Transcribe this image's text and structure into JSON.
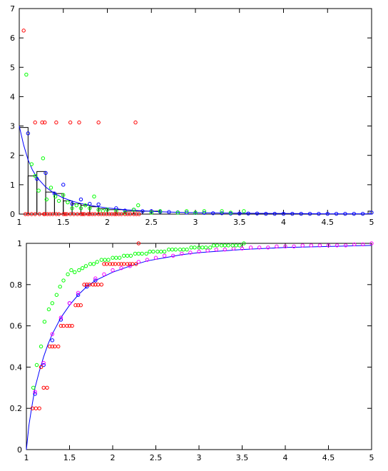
{
  "chart_data": [
    {
      "type": "histogram+scatter",
      "title": "",
      "xlabel": "",
      "ylabel": "",
      "xlim": [
        1,
        5
      ],
      "ylim": [
        0,
        7
      ],
      "xticks": [
        "1",
        "1.5",
        "2",
        "2.5",
        "3",
        "3.5",
        "4",
        "4.5",
        "5"
      ],
      "yticks": [
        "0",
        "1",
        "2",
        "3",
        "4",
        "5",
        "6",
        "7"
      ],
      "xtick_values": [
        1,
        1.5,
        2,
        2.5,
        3,
        3.5,
        4,
        4.5,
        5
      ],
      "ytick_values": [
        0,
        1,
        2,
        3,
        4,
        5,
        6,
        7
      ],
      "grid": false,
      "legend": "none",
      "histogram": {
        "bin_edges": [
          1.0,
          1.1,
          1.2,
          1.3,
          1.4,
          1.5,
          1.6,
          1.7,
          1.8,
          1.9,
          2.0,
          2.1,
          2.2,
          2.3,
          2.4,
          2.5,
          2.6,
          4.96,
          5.0
        ],
        "heights": [
          2.95,
          1.3,
          1.45,
          0.75,
          0.7,
          0.45,
          0.35,
          0.3,
          0.25,
          0.18,
          0.15,
          0.15,
          0.1,
          0.1,
          0.1,
          0.1,
          0.0,
          0.1
        ]
      },
      "series": [
        {
          "color": "#0000ff",
          "mode": "line",
          "x": [
            1.0,
            1.05,
            1.1,
            1.15,
            1.2,
            1.3,
            1.4,
            1.5,
            1.6,
            1.7,
            1.8,
            1.9,
            2.0,
            2.2,
            2.4,
            2.6,
            2.8,
            3.0,
            3.5,
            4.0,
            4.5,
            5.0
          ],
          "y": [
            3.0,
            2.35,
            1.85,
            1.5,
            1.25,
            0.92,
            0.7,
            0.55,
            0.44,
            0.36,
            0.3,
            0.25,
            0.21,
            0.15,
            0.11,
            0.08,
            0.06,
            0.05,
            0.03,
            0.02,
            0.01,
            0.01
          ]
        },
        {
          "color": "#0000ff",
          "mode": "markers",
          "x": [
            1.1,
            1.2,
            1.3,
            1.4,
            1.5,
            1.6,
            1.7,
            1.8,
            1.9,
            2.0,
            2.1,
            2.2,
            2.3,
            2.4,
            2.5,
            2.6,
            2.7,
            2.8,
            2.9,
            3.0,
            3.1,
            3.2,
            3.3,
            3.4,
            3.5,
            3.6,
            3.7,
            3.8,
            3.9,
            4.0,
            4.1,
            4.2,
            4.3,
            4.4,
            4.5,
            4.6,
            4.7,
            4.8,
            4.9,
            5.0
          ],
          "y": [
            2.75,
            1.2,
            1.4,
            0.7,
            1.0,
            0.35,
            0.5,
            0.35,
            0.33,
            0.15,
            0.2,
            0.12,
            0.15,
            0.1,
            0.1,
            0.08,
            0.07,
            0.06,
            0.05,
            0.04,
            0.04,
            0.03,
            0.03,
            0.02,
            0.02,
            0.02,
            0.02,
            0.01,
            0.01,
            0.01,
            0.01,
            0.01,
            0.01,
            0.01,
            0.01,
            0.01,
            0.01,
            0.01,
            0.01,
            0.05
          ]
        },
        {
          "color": "#00ff00",
          "mode": "markers",
          "x": [
            1.08,
            1.14,
            1.18,
            1.22,
            1.27,
            1.31,
            1.36,
            1.41,
            1.45,
            1.5,
            1.55,
            1.6,
            1.65,
            1.7,
            1.75,
            1.8,
            1.85,
            1.9,
            1.95,
            2.0,
            2.1,
            2.2,
            2.3,
            2.35,
            2.5,
            2.6,
            2.8,
            2.9,
            3.0,
            3.1,
            3.3,
            3.4,
            3.55
          ],
          "y": [
            4.75,
            1.7,
            1.3,
            0.8,
            1.9,
            0.5,
            0.9,
            0.6,
            0.45,
            0.65,
            0.4,
            0.2,
            0.3,
            0.2,
            0.3,
            0.2,
            0.6,
            0.15,
            0.1,
            0.15,
            0.1,
            0.05,
            0.15,
            0.3,
            0.05,
            0.1,
            0.05,
            0.1,
            0.05,
            0.1,
            0.1,
            0.05,
            0.1
          ]
        },
        {
          "color": "#ff0000",
          "mode": "markers",
          "x": [
            1.05,
            1.07,
            1.1,
            1.14,
            1.18,
            1.23,
            1.28,
            1.29,
            1.32,
            1.35,
            1.38,
            1.42,
            1.45,
            1.5,
            1.52,
            1.54,
            1.58,
            1.62,
            1.66,
            1.7,
            1.72,
            1.74,
            1.78,
            1.8,
            1.83,
            1.86,
            1.9,
            1.93,
            1.96,
            1.99,
            2.02,
            2.05,
            2.08,
            2.1,
            2.13,
            2.16,
            2.2,
            2.23,
            2.26,
            2.3,
            2.33,
            2.36,
            1.18,
            1.26,
            1.29,
            1.42,
            1.58,
            1.68,
            1.9,
            2.32
          ],
          "y": [
            6.25,
            0.0,
            0.0,
            0.0,
            0.0,
            0.0,
            0.0,
            0.0,
            0.0,
            0.0,
            0.0,
            0.0,
            0.0,
            0.0,
            0.0,
            0.0,
            0.0,
            0.0,
            0.0,
            0.0,
            0.0,
            0.0,
            0.0,
            0.0,
            0.0,
            0.0,
            0.0,
            0.0,
            0.0,
            0.0,
            0.0,
            0.0,
            0.0,
            0.0,
            0.0,
            0.0,
            0.0,
            0.0,
            0.0,
            0.0,
            0.0,
            0.0,
            3.12,
            3.12,
            3.12,
            3.12,
            3.12,
            3.12,
            3.12,
            3.12
          ]
        }
      ]
    },
    {
      "type": "scatter+line",
      "title": "",
      "xlabel": "",
      "ylabel": "",
      "xlim": [
        1,
        5
      ],
      "ylim": [
        0,
        1
      ],
      "xticks": [
        "1",
        "1.5",
        "2",
        "2.5",
        "3",
        "3.5",
        "4",
        "4.5",
        "5"
      ],
      "yticks": [
        "0",
        "0.2",
        "0.4",
        "0.6",
        "0.8",
        "1"
      ],
      "xtick_values": [
        1,
        1.5,
        2,
        2.5,
        3,
        3.5,
        4,
        4.5,
        5
      ],
      "ytick_values": [
        0,
        0.2,
        0.4,
        0.6,
        0.8,
        1
      ],
      "grid": false,
      "legend": "none",
      "series": [
        {
          "color": "#0000ff",
          "mode": "line",
          "x": [
            1.0,
            1.03,
            1.06,
            1.1,
            1.15,
            1.2,
            1.25,
            1.3,
            1.4,
            1.5,
            1.6,
            1.7,
            1.8,
            2.0,
            2.2,
            2.4,
            2.6,
            2.8,
            3.0,
            3.5,
            4.0,
            4.5,
            5.0
          ],
          "y": [
            0.0,
            0.12,
            0.2,
            0.3,
            0.38,
            0.45,
            0.51,
            0.56,
            0.64,
            0.7,
            0.75,
            0.79,
            0.82,
            0.86,
            0.89,
            0.915,
            0.93,
            0.945,
            0.955,
            0.97,
            0.98,
            0.985,
            0.99
          ]
        },
        {
          "color": "#0000ff",
          "mode": "markers",
          "x": [
            1.1,
            1.2,
            1.3,
            1.4,
            1.5,
            1.6,
            1.7,
            1.8
          ],
          "y": [
            0.27,
            0.41,
            0.53,
            0.63,
            0.71,
            0.75,
            0.79,
            0.82
          ]
        },
        {
          "color": "#ff00ff",
          "mode": "markers",
          "x": [
            1.1,
            1.2,
            1.3,
            1.4,
            1.5,
            1.6,
            1.7,
            1.8,
            1.9,
            2.0,
            2.1,
            2.2,
            2.3,
            2.4,
            2.5,
            2.6,
            2.7,
            2.8,
            2.9,
            3.0,
            3.1,
            3.2,
            3.3,
            3.4,
            3.5,
            3.6,
            3.7,
            3.8,
            3.9,
            4.0,
            4.1,
            4.2,
            4.3,
            4.4,
            4.5,
            4.6,
            4.7,
            4.8,
            4.9,
            5.0
          ],
          "y": [
            0.28,
            0.42,
            0.56,
            0.64,
            0.71,
            0.76,
            0.8,
            0.83,
            0.85,
            0.87,
            0.88,
            0.89,
            0.91,
            0.92,
            0.93,
            0.94,
            0.94,
            0.95,
            0.955,
            0.96,
            0.965,
            0.97,
            0.97,
            0.975,
            0.975,
            0.98,
            0.98,
            0.98,
            0.985,
            0.985,
            0.985,
            0.99,
            0.99,
            0.99,
            0.99,
            0.99,
            0.99,
            0.995,
            0.995,
            1.0
          ]
        },
        {
          "color": "#00ff00",
          "mode": "markers",
          "x": [
            1.08,
            1.12,
            1.17,
            1.21,
            1.26,
            1.3,
            1.35,
            1.39,
            1.43,
            1.48,
            1.52,
            1.56,
            1.61,
            1.65,
            1.69,
            1.74,
            1.78,
            1.82,
            1.87,
            1.91,
            1.95,
            2.0,
            2.04,
            2.08,
            2.13,
            2.17,
            2.21,
            2.26,
            2.3,
            2.34,
            2.39,
            2.43,
            2.47,
            2.52,
            2.56,
            2.6,
            2.65,
            2.69,
            2.73,
            2.78,
            2.82,
            2.86,
            2.91,
            2.95,
            3.0,
            3.04,
            3.08,
            3.13,
            3.17,
            3.21,
            3.26,
            3.3,
            3.34,
            3.39,
            3.43,
            3.47,
            3.52
          ],
          "y": [
            0.3,
            0.41,
            0.5,
            0.62,
            0.68,
            0.71,
            0.75,
            0.79,
            0.82,
            0.85,
            0.87,
            0.86,
            0.87,
            0.88,
            0.89,
            0.9,
            0.9,
            0.91,
            0.92,
            0.92,
            0.92,
            0.93,
            0.93,
            0.93,
            0.94,
            0.94,
            0.94,
            0.95,
            0.95,
            0.95,
            0.95,
            0.96,
            0.96,
            0.96,
            0.96,
            0.96,
            0.97,
            0.97,
            0.97,
            0.97,
            0.97,
            0.97,
            0.98,
            0.98,
            0.98,
            0.98,
            0.98,
            0.98,
            0.99,
            0.99,
            0.99,
            0.99,
            0.99,
            0.99,
            0.99,
            0.99,
            1.0
          ]
        },
        {
          "color": "#ff0000",
          "mode": "markers",
          "x": [
            1.07,
            1.11,
            1.15,
            1.17,
            1.2,
            1.24,
            1.27,
            1.3,
            1.33,
            1.37,
            1.4,
            1.43,
            1.47,
            1.5,
            1.53,
            1.57,
            1.6,
            1.63,
            1.67,
            1.7,
            1.73,
            1.77,
            1.8,
            1.83,
            1.87,
            1.9,
            1.93,
            1.97,
            2.0,
            2.03,
            2.07,
            2.1,
            2.13,
            2.17,
            2.2,
            2.23,
            2.27,
            2.3
          ],
          "y": [
            0.2,
            0.2,
            0.2,
            0.4,
            0.3,
            0.3,
            0.5,
            0.5,
            0.5,
            0.5,
            0.6,
            0.6,
            0.6,
            0.6,
            0.6,
            0.7,
            0.7,
            0.7,
            0.8,
            0.8,
            0.8,
            0.8,
            0.8,
            0.8,
            0.8,
            0.9,
            0.9,
            0.9,
            0.9,
            0.9,
            0.9,
            0.9,
            0.9,
            0.9,
            0.9,
            0.9,
            0.9,
            1.0
          ]
        }
      ]
    }
  ]
}
